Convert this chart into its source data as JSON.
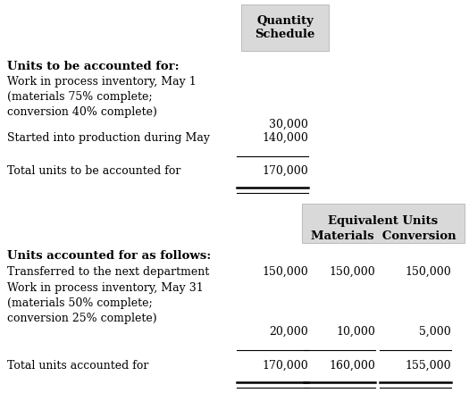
{
  "bg_color": "#ffffff",
  "header_bg": "#d9d9d9",
  "fig_width": 5.25,
  "fig_height": 4.68,
  "title_qty": "Quantity\nSchedule",
  "title_equiv_line1": "Equivalent Units",
  "title_equiv_line2": "Materials  Conversion",
  "section1_header": "Units to be accounted for:",
  "row1_label": "Work in process inventory, May 1\n(materials 75% complete;\nconversion 40% complete)",
  "row1_qty": "30,000",
  "row2_label": "Started into production during May",
  "row2_qty": "140,000",
  "total1_label": "Total units to be accounted for",
  "total1_qty": "170,000",
  "section2_header": "Units accounted for as follows:",
  "row3_label": "Transferred to the next department",
  "row3_qty": "150,000",
  "row3_mat": "150,000",
  "row3_con": "150,000",
  "row4_label": "Work in process inventory, May 31\n(materials 50% complete;\nconversion 25% complete)",
  "row4_qty": "20,000",
  "row4_mat": "10,000",
  "row4_con": "5,000",
  "total2_label": "Total units accounted for",
  "total2_qty": "170,000",
  "total2_mat": "160,000",
  "total2_con": "155,000",
  "font_size": 9.0,
  "bold_size": 9.5,
  "font_family": "DejaVu Serif"
}
